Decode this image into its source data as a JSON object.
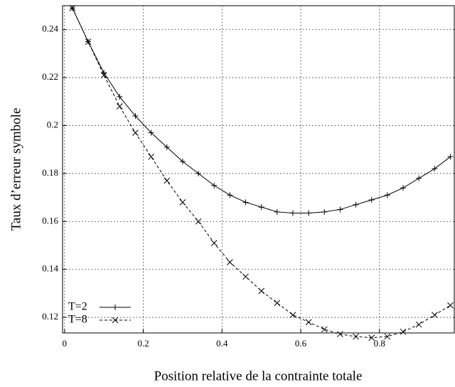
{
  "chart_data": {
    "type": "line",
    "xlabel": "Position relative de la contrainte totale",
    "ylabel": "Taux d’erreur symbole",
    "x": [
      0.02,
      0.06,
      0.1,
      0.14,
      0.18,
      0.22,
      0.26,
      0.3,
      0.34,
      0.38,
      0.42,
      0.46,
      0.5,
      0.54,
      0.58,
      0.62,
      0.66,
      0.7,
      0.74,
      0.78,
      0.82,
      0.86,
      0.9,
      0.94,
      0.98
    ],
    "series": [
      {
        "name": "T=2",
        "color": "#000000",
        "dash": false,
        "marker": "plus",
        "values": [
          0.249,
          0.235,
          0.222,
          0.212,
          0.204,
          0.197,
          0.191,
          0.185,
          0.18,
          0.175,
          0.171,
          0.168,
          0.166,
          0.164,
          0.1635,
          0.1635,
          0.164,
          0.165,
          0.167,
          0.169,
          0.171,
          0.174,
          0.178,
          0.182,
          0.187
        ]
      },
      {
        "name": "T=8",
        "color": "#000000",
        "dash": true,
        "marker": "cross",
        "values": [
          0.249,
          0.235,
          0.221,
          0.208,
          0.197,
          0.187,
          0.177,
          0.168,
          0.16,
          0.151,
          0.143,
          0.137,
          0.131,
          0.126,
          0.121,
          0.118,
          0.115,
          0.113,
          0.112,
          0.1115,
          0.112,
          0.114,
          0.117,
          0.121,
          0.125
        ]
      }
    ],
    "xlim": [
      -0.005,
      0.99
    ],
    "ylim": [
      0.1135,
      0.25
    ],
    "xticks": [
      0,
      0.2,
      0.4,
      0.6,
      0.8
    ],
    "yticks": [
      0.12,
      0.14,
      0.16,
      0.18,
      0.2,
      0.22,
      0.24
    ],
    "grid": true,
    "legend": "lower left"
  }
}
